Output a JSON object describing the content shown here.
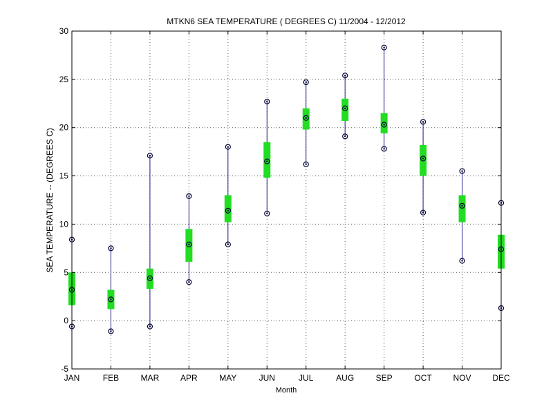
{
  "chart_data": {
    "type": "box",
    "title": "MTKN6  SEA TEMPERATURE ( DEGREES C) 11/2004 - 12/2012",
    "xlabel": "Month",
    "ylabel": "SEA TEMPERATURE -- (DEGREES C)",
    "ylim": [
      -5,
      30
    ],
    "yticks": [
      "-5",
      "0",
      "5",
      "10",
      "15",
      "20",
      "25",
      "30"
    ],
    "grid": true,
    "categories": [
      "JAN",
      "FEB",
      "MAR",
      "APR",
      "MAY",
      "JUN",
      "JUL",
      "AUG",
      "SEP",
      "OCT",
      "NOV",
      "DEC"
    ],
    "min": [
      -0.6,
      -1.1,
      -0.6,
      4.0,
      7.9,
      11.1,
      16.2,
      19.1,
      17.8,
      11.2,
      6.2,
      1.3
    ],
    "q1": [
      1.6,
      1.2,
      3.3,
      6.1,
      10.2,
      14.8,
      19.8,
      20.7,
      19.4,
      15.0,
      10.2,
      5.4
    ],
    "median": [
      3.2,
      2.2,
      4.4,
      7.9,
      11.4,
      16.5,
      21.0,
      22.0,
      20.3,
      16.8,
      11.9,
      7.4
    ],
    "q3": [
      5.0,
      3.2,
      5.4,
      9.5,
      13.0,
      18.5,
      22.0,
      23.0,
      21.5,
      18.2,
      13.0,
      8.9
    ],
    "max": [
      8.4,
      7.5,
      17.1,
      12.9,
      18.0,
      22.7,
      24.7,
      25.4,
      28.3,
      20.6,
      15.5,
      12.2
    ],
    "colors": {
      "whisker": "#1a1a8c",
      "box": "#22dd22",
      "marker": "#000033",
      "grid": "#555555"
    }
  }
}
